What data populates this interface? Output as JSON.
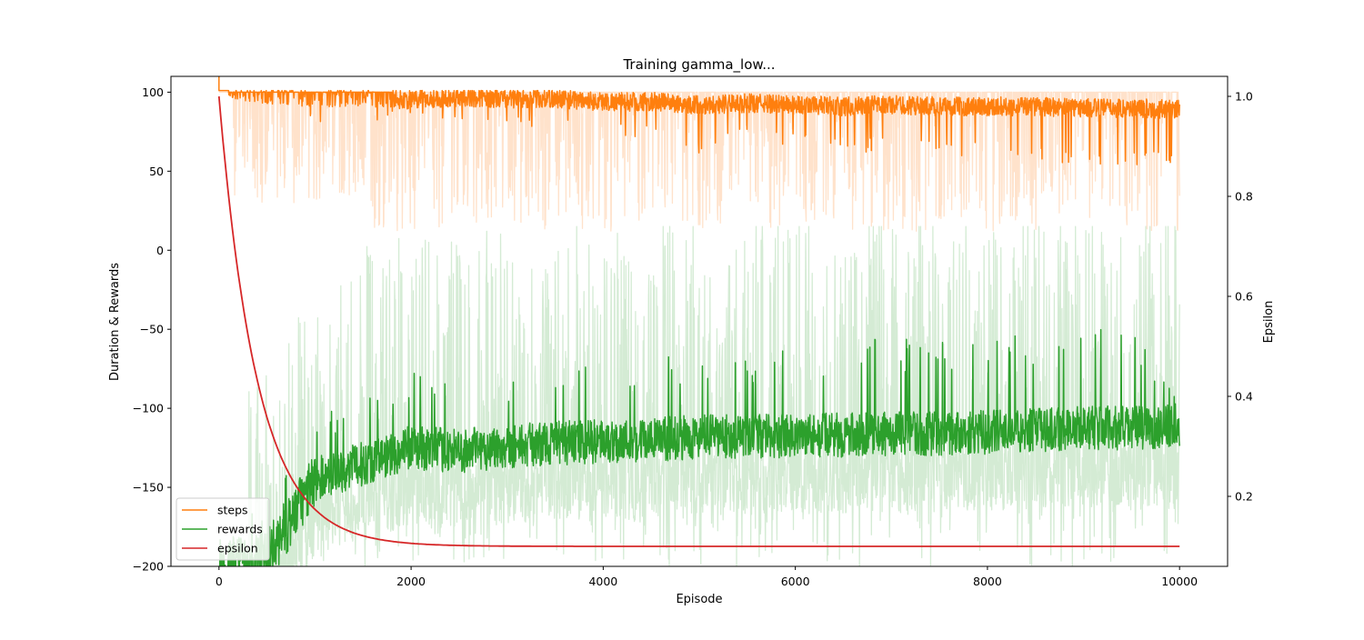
{
  "chart_data": {
    "type": "line",
    "title": "Training gamma_low...",
    "xlabel": "Episode",
    "ylabel": "Duration & Rewards",
    "y2label": "Epsilon",
    "xlim": [
      -500,
      10500
    ],
    "ylim": [
      -200,
      110
    ],
    "y2lim": [
      0.06,
      1.04
    ],
    "xticks": [
      0,
      2000,
      4000,
      6000,
      8000,
      10000
    ],
    "xtick_labels": [
      "0",
      "2000",
      "4000",
      "6000",
      "8000",
      "10000"
    ],
    "yticks": [
      -200,
      -150,
      -100,
      -50,
      0,
      50,
      100
    ],
    "ytick_labels": [
      "−200",
      "−150",
      "−100",
      "−50",
      "0",
      "50",
      "100"
    ],
    "y2ticks": [
      0.2,
      0.4,
      0.6,
      0.8,
      1.0
    ],
    "y2tick_labels": [
      "0.2",
      "0.4",
      "0.6",
      "0.8",
      "1.0"
    ],
    "grid": false,
    "legend_position": "lower-left",
    "colors": {
      "steps": "#ff7f0e",
      "steps_raw": "#ffe2cb",
      "rewards": "#2ca02c",
      "rewards_raw": "#d4ebd4",
      "epsilon": "#d62728"
    },
    "episodes": 10000,
    "series": [
      {
        "name": "steps",
        "axis": "left",
        "x": [
          0,
          500,
          1000,
          1500,
          2000,
          2500,
          3000,
          3500,
          4000,
          4500,
          5000,
          5500,
          6000,
          6500,
          7000,
          7500,
          8000,
          8500,
          9000,
          9500,
          10000
        ],
        "values": [
          101,
          98,
          96,
          97,
          95,
          97,
          96,
          96,
          94,
          94,
          92,
          93,
          92,
          91,
          92,
          91,
          91,
          91,
          90,
          90,
          89
        ],
        "min_values": [
          100,
          88,
          78,
          82,
          80,
          80,
          78,
          75,
          70,
          70,
          60,
          68,
          65,
          62,
          62,
          60,
          58,
          57,
          52,
          52,
          55
        ]
      },
      {
        "name": "rewards",
        "axis": "left",
        "x": [
          0,
          500,
          1000,
          1500,
          2000,
          2500,
          3000,
          3500,
          4000,
          4500,
          5000,
          5500,
          6000,
          6500,
          7000,
          7500,
          8000,
          8500,
          9000,
          9500,
          10000
        ],
        "values": [
          -200,
          -195,
          -145,
          -135,
          -125,
          -127,
          -124,
          -122,
          -121,
          -120,
          -118,
          -118,
          -117,
          -117,
          -116,
          -116,
          -115,
          -114,
          -112,
          -113,
          -110
        ],
        "max_values": [
          -200,
          -150,
          -110,
          -85,
          -75,
          -85,
          -80,
          -80,
          -68,
          -65,
          -60,
          -68,
          -60,
          -58,
          -55,
          -58,
          -52,
          -55,
          -38,
          -50,
          -90
        ]
      },
      {
        "name": "epsilon",
        "axis": "right",
        "x": [
          0,
          10000
        ],
        "start": 1.0,
        "end": 0.1,
        "decay_per_episode": 0.0025
      }
    ]
  }
}
